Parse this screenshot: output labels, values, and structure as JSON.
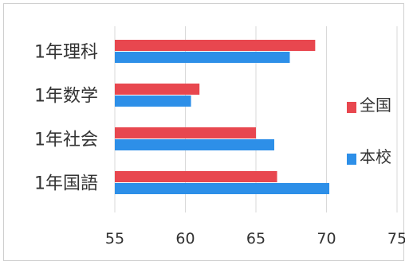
{
  "chart_data": {
    "type": "bar",
    "orientation": "horizontal",
    "categories": [
      "1年理科",
      "1年数学",
      "1年社会",
      "1年国語"
    ],
    "series": [
      {
        "name": "全国",
        "color": "#e8474f",
        "values": [
          69.2,
          61.0,
          65.0,
          66.5
        ]
      },
      {
        "name": "本校",
        "color": "#2d8fe8",
        "values": [
          67.4,
          60.4,
          66.3,
          70.2
        ]
      }
    ],
    "x_ticks": [
      55,
      60,
      65,
      70,
      75
    ],
    "xlim": [
      55,
      75
    ],
    "grid": "vertical",
    "legend_position": "right"
  }
}
